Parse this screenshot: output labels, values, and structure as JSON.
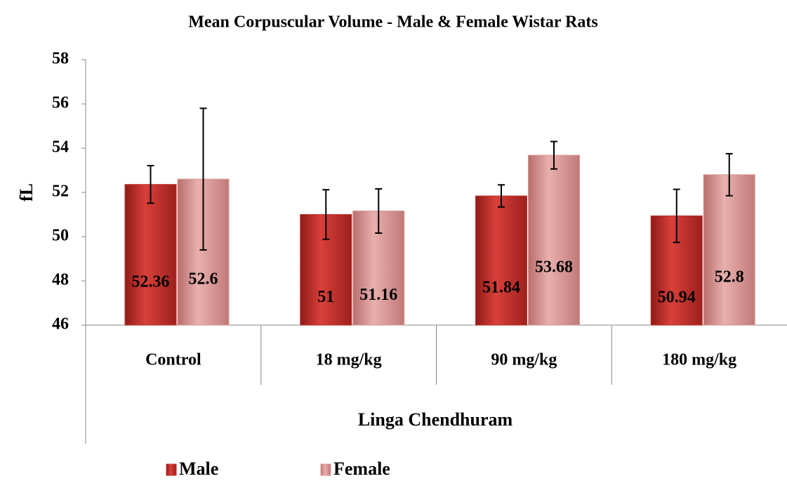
{
  "chart_data": {
    "type": "bar",
    "title": "Mean Corpuscular Volume - Male & Female Wistar Rats",
    "y_label": "fL",
    "x_label": "Linga Chendhuram",
    "categories": [
      "Control",
      "18 mg/kg",
      "90 mg/kg",
      "180 mg/kg"
    ],
    "series": [
      {
        "name": "Male",
        "color": "#c0302c",
        "values": [
          52.36,
          51,
          51.84,
          50.94
        ],
        "errors": [
          0.85,
          1.12,
          0.5,
          1.2
        ]
      },
      {
        "name": "Female",
        "color": "#d99694",
        "values": [
          52.6,
          51.16,
          53.68,
          52.8
        ],
        "errors": [
          3.2,
          1.0,
          0.62,
          0.95
        ]
      }
    ],
    "ylim": [
      46,
      58
    ],
    "yticks": [
      46,
      48,
      50,
      52,
      54,
      56,
      58
    ],
    "grid": false,
    "legend": "bottom"
  }
}
